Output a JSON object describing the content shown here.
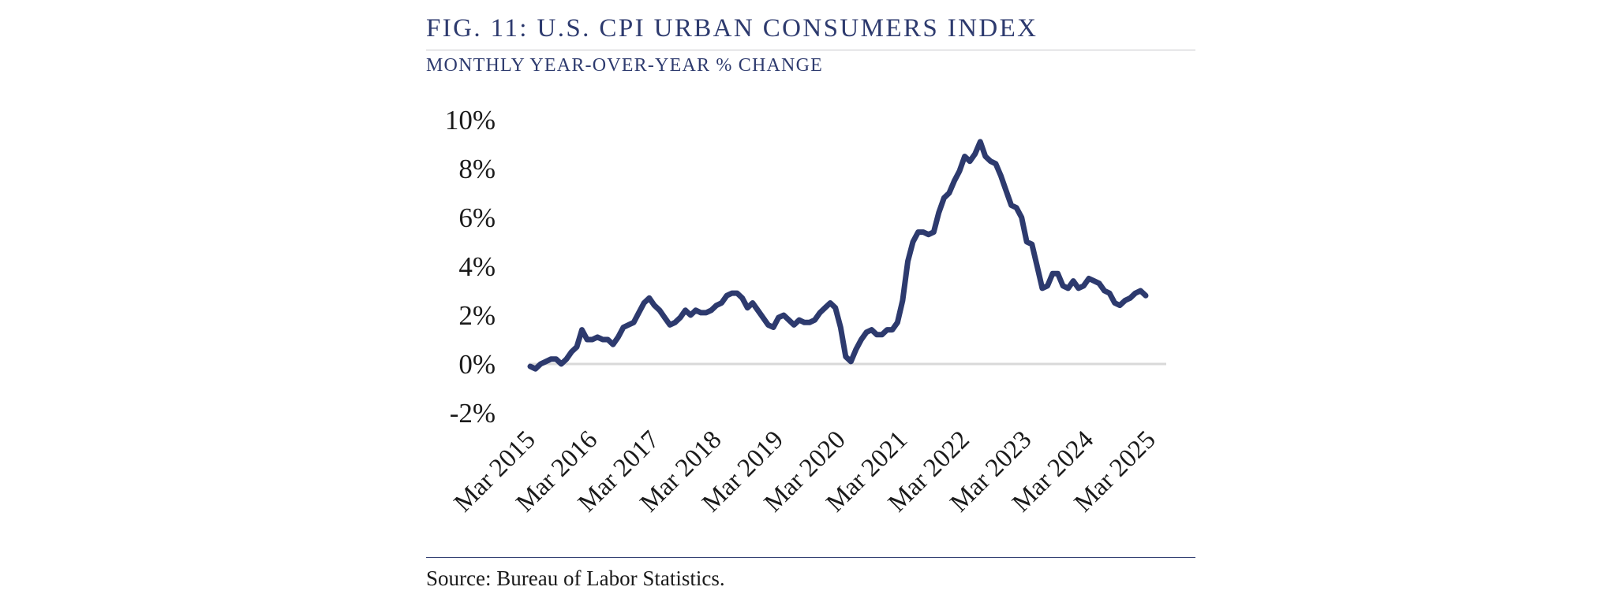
{
  "figure": {
    "title": "FIG. 11: U.S. CPI URBAN CONSUMERS INDEX",
    "subtitle": "MONTHLY YEAR-OVER-YEAR % CHANGE",
    "source": "Source: Bureau of Labor Statistics."
  },
  "colors": {
    "line": "#2d3a6e",
    "title": "#2d3a6e",
    "zero_line": "#d9d9d9"
  },
  "chart_data": {
    "type": "line",
    "title": "FIG. 11: U.S. CPI URBAN CONSUMERS INDEX",
    "subtitle": "MONTHLY YEAR-OVER-YEAR % CHANGE",
    "xlabel": "",
    "ylabel": "",
    "ylim": [
      -2,
      10
    ],
    "y_ticks": [
      10,
      8,
      6,
      4,
      2,
      0,
      -2
    ],
    "y_tick_labels": [
      "10%",
      "8%",
      "6%",
      "4%",
      "2%",
      "0%",
      "-2%"
    ],
    "x_tick_labels": [
      "Mar 2015",
      "Mar 2016",
      "Mar 2017",
      "Mar 2018",
      "Mar 2019",
      "Mar 2020",
      "Mar 2021",
      "Mar 2022",
      "Mar 2023",
      "Mar 2024",
      "Mar 2025"
    ],
    "x_start": "Mar 2015",
    "x_end": "Mar 2025",
    "grid": false,
    "zero_line": true,
    "legend": "none",
    "series": [
      {
        "values": [
          -0.1,
          -0.2,
          0.0,
          0.1,
          0.2,
          0.2,
          0.0,
          0.2,
          0.5,
          0.7,
          1.4,
          1.0,
          1.0,
          1.1,
          1.0,
          1.0,
          0.8,
          1.1,
          1.5,
          1.6,
          1.7,
          2.1,
          2.5,
          2.7,
          2.4,
          2.2,
          1.9,
          1.6,
          1.7,
          1.9,
          2.2,
          2.0,
          2.2,
          2.1,
          2.1,
          2.2,
          2.4,
          2.5,
          2.8,
          2.9,
          2.9,
          2.7,
          2.3,
          2.5,
          2.2,
          1.9,
          1.6,
          1.5,
          1.9,
          2.0,
          1.8,
          1.6,
          1.8,
          1.7,
          1.7,
          1.8,
          2.1,
          2.3,
          2.5,
          2.3,
          1.5,
          0.3,
          0.1,
          0.6,
          1.0,
          1.3,
          1.4,
          1.2,
          1.2,
          1.4,
          1.4,
          1.7,
          2.6,
          4.2,
          5.0,
          5.4,
          5.4,
          5.3,
          5.4,
          6.2,
          6.8,
          7.0,
          7.5,
          7.9,
          8.5,
          8.3,
          8.6,
          9.1,
          8.5,
          8.3,
          8.2,
          7.7,
          7.1,
          6.5,
          6.4,
          6.0,
          5.0,
          4.9,
          4.0,
          3.1,
          3.2,
          3.7,
          3.7,
          3.2,
          3.1,
          3.4,
          3.1,
          3.2,
          3.5,
          3.4,
          3.3,
          3.0,
          2.9,
          2.5,
          2.4,
          2.6,
          2.7,
          2.9,
          3.0,
          2.8
        ]
      }
    ]
  }
}
